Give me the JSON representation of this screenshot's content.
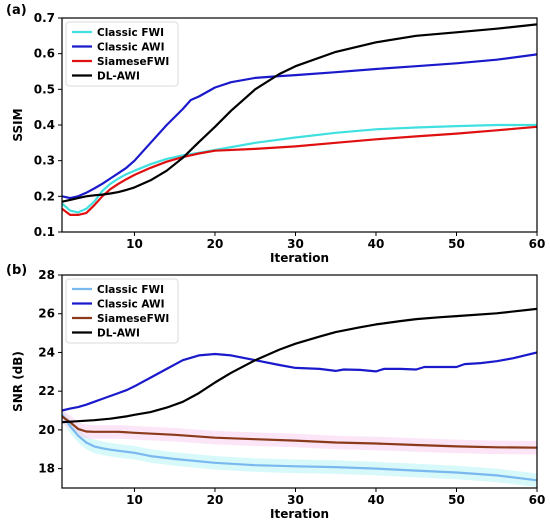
{
  "chart_data": [
    {
      "panel": "(a)",
      "type": "line",
      "xlabel": "Iteration",
      "ylabel": "SSIM",
      "xlim": [
        1,
        60
      ],
      "ylim": [
        0.1,
        0.7
      ],
      "xticks": [
        10,
        20,
        30,
        40,
        50,
        60
      ],
      "yticks": [
        0.1,
        0.2,
        0.3,
        0.4,
        0.5,
        0.6,
        0.7
      ],
      "legend_position": "top-left",
      "series": [
        {
          "name": "Classic FWI",
          "color": "#40e0e0",
          "x": [
            1,
            2,
            3,
            4,
            5,
            6,
            7,
            8,
            9,
            10,
            12,
            14,
            16,
            18,
            20,
            25,
            30,
            35,
            40,
            45,
            50,
            55,
            60
          ],
          "y": [
            0.18,
            0.16,
            0.155,
            0.165,
            0.185,
            0.215,
            0.235,
            0.25,
            0.262,
            0.272,
            0.29,
            0.305,
            0.315,
            0.322,
            0.33,
            0.35,
            0.365,
            0.378,
            0.388,
            0.393,
            0.397,
            0.4,
            0.4
          ]
        },
        {
          "name": "Classic AWI",
          "color": "#1a1acc",
          "x": [
            1,
            2,
            3,
            4,
            5,
            6,
            7,
            8,
            9,
            10,
            12,
            14,
            16,
            17,
            18,
            20,
            22,
            25,
            28,
            30,
            35,
            40,
            45,
            50,
            55,
            60
          ],
          "y": [
            0.2,
            0.195,
            0.2,
            0.21,
            0.222,
            0.235,
            0.25,
            0.265,
            0.28,
            0.3,
            0.35,
            0.4,
            0.445,
            0.47,
            0.48,
            0.505,
            0.52,
            0.532,
            0.537,
            0.54,
            0.548,
            0.557,
            0.565,
            0.573,
            0.583,
            0.598
          ]
        },
        {
          "name": "SiameseFWI",
          "color": "#e01010",
          "x": [
            1,
            2,
            3,
            4,
            5,
            6,
            7,
            8,
            9,
            10,
            12,
            14,
            16,
            18,
            20,
            25,
            30,
            35,
            40,
            45,
            50,
            55,
            60
          ],
          "y": [
            0.165,
            0.148,
            0.148,
            0.153,
            0.175,
            0.2,
            0.22,
            0.235,
            0.248,
            0.26,
            0.28,
            0.297,
            0.31,
            0.32,
            0.328,
            0.333,
            0.34,
            0.35,
            0.36,
            0.368,
            0.376,
            0.385,
            0.395
          ]
        },
        {
          "name": "DL-AWI",
          "color": "#000000",
          "x": [
            1,
            2,
            3,
            4,
            5,
            6,
            7,
            8,
            9,
            10,
            12,
            14,
            16,
            18,
            20,
            22,
            25,
            28,
            30,
            35,
            40,
            45,
            50,
            55,
            60
          ],
          "y": [
            0.185,
            0.19,
            0.195,
            0.2,
            0.203,
            0.205,
            0.208,
            0.212,
            0.218,
            0.225,
            0.245,
            0.272,
            0.308,
            0.352,
            0.395,
            0.44,
            0.5,
            0.543,
            0.565,
            0.605,
            0.632,
            0.65,
            0.66,
            0.67,
            0.682
          ]
        }
      ]
    },
    {
      "panel": "(b)",
      "type": "line",
      "xlabel": "Iteration",
      "ylabel": "SNR (dB)",
      "xlim": [
        1,
        60
      ],
      "ylim": [
        17,
        28
      ],
      "xticks": [
        10,
        20,
        30,
        40,
        50,
        60
      ],
      "yticks": [
        18,
        20,
        22,
        24,
        26,
        28
      ],
      "legend_position": "top-left",
      "series": [
        {
          "name": "Classic FWI",
          "color": "#7ab8f0",
          "band_color": "#b8f4f4",
          "x": [
            1,
            2,
            3,
            4,
            5,
            6,
            7,
            8,
            10,
            12,
            15,
            20,
            25,
            30,
            35,
            40,
            45,
            50,
            55,
            58,
            60
          ],
          "y": [
            20.8,
            20.2,
            19.7,
            19.35,
            19.15,
            19.05,
            18.98,
            18.92,
            18.82,
            18.65,
            18.5,
            18.3,
            18.18,
            18.12,
            18.08,
            18.0,
            17.9,
            17.8,
            17.65,
            17.5,
            17.4
          ]
        },
        {
          "name": "Classic AWI",
          "color": "#1a1acc",
          "x": [
            1,
            2,
            3,
            4,
            5,
            6,
            7,
            8,
            9,
            10,
            12,
            14,
            16,
            18,
            20,
            22,
            25,
            28,
            30,
            33,
            35,
            36,
            38,
            40,
            41,
            43,
            45,
            46,
            48,
            50,
            51,
            53,
            55,
            57,
            60
          ],
          "y": [
            21.0,
            21.1,
            21.18,
            21.3,
            21.45,
            21.6,
            21.75,
            21.9,
            22.05,
            22.25,
            22.7,
            23.15,
            23.6,
            23.85,
            23.92,
            23.85,
            23.6,
            23.35,
            23.2,
            23.15,
            23.05,
            23.12,
            23.1,
            23.02,
            23.15,
            23.15,
            23.12,
            23.25,
            23.25,
            23.25,
            23.4,
            23.45,
            23.55,
            23.7,
            24.0
          ]
        },
        {
          "name": "SiameseFWI",
          "color": "#8b3a1a",
          "band_color": "#f8d0f0",
          "x": [
            1,
            2,
            3,
            4,
            5,
            6,
            8,
            10,
            15,
            20,
            25,
            30,
            35,
            40,
            45,
            50,
            55,
            60
          ],
          "y": [
            20.7,
            20.4,
            20.05,
            19.92,
            19.9,
            19.9,
            19.9,
            19.85,
            19.75,
            19.6,
            19.52,
            19.45,
            19.35,
            19.3,
            19.22,
            19.15,
            19.1,
            19.08
          ]
        },
        {
          "name": "DL-AWI",
          "color": "#000000",
          "x": [
            1,
            3,
            5,
            7,
            9,
            10,
            12,
            14,
            16,
            18,
            20,
            22,
            25,
            28,
            30,
            33,
            35,
            38,
            40,
            43,
            45,
            48,
            50,
            55,
            60
          ],
          "y": [
            20.4,
            20.45,
            20.5,
            20.58,
            20.7,
            20.78,
            20.92,
            21.15,
            21.45,
            21.9,
            22.45,
            22.95,
            23.6,
            24.15,
            24.45,
            24.82,
            25.05,
            25.3,
            25.45,
            25.62,
            25.72,
            25.82,
            25.88,
            26.02,
            26.25
          ]
        }
      ]
    }
  ]
}
